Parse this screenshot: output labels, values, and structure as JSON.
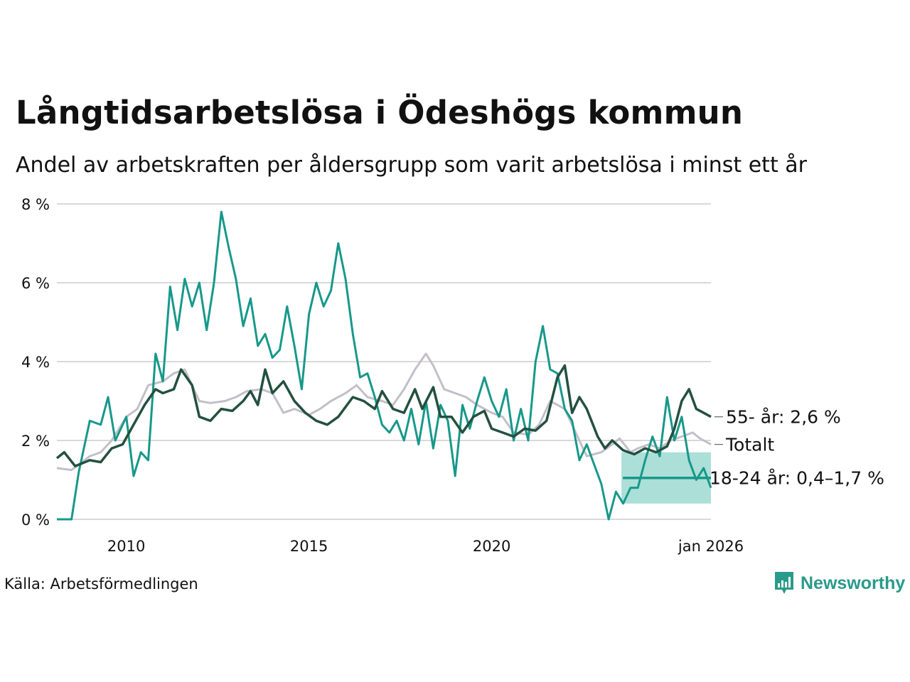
{
  "title": "Långtidsarbetslösa i Ödeshögs kommun",
  "subtitle": "Andel av arbetskraften per åldersgrupp som varit arbetslösa i minst ett år",
  "source": "Källa: Arbetsförmedlingen",
  "brand": "Newsworthy",
  "colors": {
    "totalt": "#c3bfc9",
    "age55": "#24503f",
    "age1824": "#17988a",
    "band": "#a3dbd3",
    "grid": "#d9d9d9"
  },
  "chart_data": {
    "type": "line",
    "title": "Långtidsarbetslösa i Ödeshögs kommun",
    "subtitle": "Andel av arbetskraften per åldersgrupp som varit arbetslösa i minst ett år",
    "xlabel": "",
    "ylabel": "",
    "xlim": [
      2008.1,
      2026.0
    ],
    "ylim": [
      0,
      8
    ],
    "y_ticks": [
      {
        "v": 0,
        "label": "0 %"
      },
      {
        "v": 2,
        "label": "2 %"
      },
      {
        "v": 4,
        "label": "4 %"
      },
      {
        "v": 6,
        "label": "6 %"
      },
      {
        "v": 8,
        "label": "8 %"
      }
    ],
    "x_ticks": [
      {
        "v": 2010,
        "label": "2010"
      },
      {
        "v": 2015,
        "label": "2015"
      },
      {
        "v": 2020,
        "label": "2020"
      },
      {
        "v": 2026.0,
        "label": "jan 2026"
      }
    ],
    "grid": true,
    "series": [
      {
        "name": "Totalt",
        "key": "totalt",
        "label": "Totalt",
        "points": [
          [
            2008.1,
            1.3
          ],
          [
            2008.5,
            1.25
          ],
          [
            2009.0,
            1.6
          ],
          [
            2009.3,
            1.7
          ],
          [
            2009.6,
            2.0
          ],
          [
            2010.0,
            2.6
          ],
          [
            2010.3,
            2.8
          ],
          [
            2010.6,
            3.4
          ],
          [
            2011.0,
            3.5
          ],
          [
            2011.3,
            3.7
          ],
          [
            2011.6,
            3.8
          ],
          [
            2012.0,
            3.0
          ],
          [
            2012.3,
            2.95
          ],
          [
            2012.7,
            3.0
          ],
          [
            2013.0,
            3.1
          ],
          [
            2013.3,
            3.25
          ],
          [
            2013.7,
            3.3
          ],
          [
            2014.0,
            3.2
          ],
          [
            2014.3,
            2.7
          ],
          [
            2014.6,
            2.8
          ],
          [
            2015.0,
            2.65
          ],
          [
            2015.3,
            2.8
          ],
          [
            2015.6,
            3.0
          ],
          [
            2016.0,
            3.2
          ],
          [
            2016.3,
            3.4
          ],
          [
            2016.6,
            3.1
          ],
          [
            2017.0,
            3.0
          ],
          [
            2017.3,
            2.9
          ],
          [
            2017.6,
            3.3
          ],
          [
            2017.9,
            3.8
          ],
          [
            2018.2,
            4.2
          ],
          [
            2018.4,
            3.9
          ],
          [
            2018.7,
            3.3
          ],
          [
            2019.0,
            3.2
          ],
          [
            2019.3,
            3.1
          ],
          [
            2019.6,
            2.9
          ],
          [
            2020.0,
            2.7
          ],
          [
            2020.3,
            2.6
          ],
          [
            2020.6,
            2.2
          ],
          [
            2021.0,
            2.15
          ],
          [
            2021.3,
            2.4
          ],
          [
            2021.6,
            3.0
          ],
          [
            2022.0,
            2.8
          ],
          [
            2022.3,
            2.2
          ],
          [
            2022.6,
            1.6
          ],
          [
            2023.0,
            1.7
          ],
          [
            2023.3,
            1.9
          ],
          [
            2023.5,
            2.05
          ],
          [
            2023.8,
            1.7
          ],
          [
            2024.0,
            1.8
          ],
          [
            2024.3,
            1.9
          ],
          [
            2024.6,
            1.8
          ],
          [
            2024.9,
            2.0
          ],
          [
            2025.2,
            2.1
          ],
          [
            2025.5,
            2.2
          ],
          [
            2025.7,
            2.05
          ],
          [
            2026.0,
            1.9
          ]
        ]
      },
      {
        "name": "55- år",
        "key": "age55",
        "label": "55- år: 2,6 %",
        "points": [
          [
            2008.1,
            1.55
          ],
          [
            2008.3,
            1.7
          ],
          [
            2008.6,
            1.35
          ],
          [
            2009.0,
            1.5
          ],
          [
            2009.3,
            1.45
          ],
          [
            2009.6,
            1.8
          ],
          [
            2009.9,
            1.9
          ],
          [
            2010.2,
            2.4
          ],
          [
            2010.5,
            2.9
          ],
          [
            2010.8,
            3.3
          ],
          [
            2011.0,
            3.2
          ],
          [
            2011.3,
            3.3
          ],
          [
            2011.5,
            3.8
          ],
          [
            2011.8,
            3.4
          ],
          [
            2012.0,
            2.6
          ],
          [
            2012.3,
            2.5
          ],
          [
            2012.6,
            2.8
          ],
          [
            2012.9,
            2.75
          ],
          [
            2013.2,
            3.0
          ],
          [
            2013.4,
            3.25
          ],
          [
            2013.6,
            2.9
          ],
          [
            2013.8,
            3.8
          ],
          [
            2014.0,
            3.2
          ],
          [
            2014.3,
            3.5
          ],
          [
            2014.6,
            3.0
          ],
          [
            2014.9,
            2.7
          ],
          [
            2015.2,
            2.5
          ],
          [
            2015.5,
            2.4
          ],
          [
            2015.8,
            2.6
          ],
          [
            2016.2,
            3.1
          ],
          [
            2016.5,
            3.0
          ],
          [
            2016.8,
            2.8
          ],
          [
            2017.0,
            3.25
          ],
          [
            2017.3,
            2.8
          ],
          [
            2017.6,
            2.7
          ],
          [
            2017.9,
            3.3
          ],
          [
            2018.1,
            2.8
          ],
          [
            2018.4,
            3.35
          ],
          [
            2018.6,
            2.6
          ],
          [
            2018.9,
            2.6
          ],
          [
            2019.2,
            2.2
          ],
          [
            2019.5,
            2.6
          ],
          [
            2019.8,
            2.75
          ],
          [
            2020.0,
            2.3
          ],
          [
            2020.3,
            2.2
          ],
          [
            2020.6,
            2.1
          ],
          [
            2020.9,
            2.3
          ],
          [
            2021.2,
            2.25
          ],
          [
            2021.5,
            2.5
          ],
          [
            2021.8,
            3.6
          ],
          [
            2022.0,
            3.9
          ],
          [
            2022.2,
            2.7
          ],
          [
            2022.4,
            3.1
          ],
          [
            2022.6,
            2.8
          ],
          [
            2022.9,
            2.1
          ],
          [
            2023.1,
            1.8
          ],
          [
            2023.3,
            2.0
          ],
          [
            2023.6,
            1.75
          ],
          [
            2023.9,
            1.65
          ],
          [
            2024.2,
            1.8
          ],
          [
            2024.5,
            1.7
          ],
          [
            2024.8,
            1.85
          ],
          [
            2025.0,
            2.3
          ],
          [
            2025.2,
            3.0
          ],
          [
            2025.4,
            3.3
          ],
          [
            2025.6,
            2.8
          ],
          [
            2025.8,
            2.7
          ],
          [
            2026.0,
            2.6
          ]
        ]
      },
      {
        "name": "18-24 år",
        "key": "age1824",
        "label": "18-24 år: 0,4–1,7 %",
        "points": [
          [
            2008.1,
            0.0
          ],
          [
            2008.5,
            0.0
          ],
          [
            2008.7,
            1.2
          ],
          [
            2009.0,
            2.5
          ],
          [
            2009.3,
            2.4
          ],
          [
            2009.5,
            3.1
          ],
          [
            2009.7,
            2.0
          ],
          [
            2010.0,
            2.6
          ],
          [
            2010.2,
            1.1
          ],
          [
            2010.4,
            1.7
          ],
          [
            2010.6,
            1.5
          ],
          [
            2010.8,
            4.2
          ],
          [
            2011.0,
            3.5
          ],
          [
            2011.2,
            5.9
          ],
          [
            2011.4,
            4.8
          ],
          [
            2011.6,
            6.1
          ],
          [
            2011.8,
            5.4
          ],
          [
            2012.0,
            6.0
          ],
          [
            2012.2,
            4.8
          ],
          [
            2012.4,
            6.0
          ],
          [
            2012.6,
            7.8
          ],
          [
            2012.8,
            6.9
          ],
          [
            2013.0,
            6.1
          ],
          [
            2013.2,
            4.9
          ],
          [
            2013.4,
            5.6
          ],
          [
            2013.6,
            4.4
          ],
          [
            2013.8,
            4.7
          ],
          [
            2014.0,
            4.1
          ],
          [
            2014.2,
            4.3
          ],
          [
            2014.4,
            5.4
          ],
          [
            2014.6,
            4.4
          ],
          [
            2014.8,
            3.3
          ],
          [
            2015.0,
            5.2
          ],
          [
            2015.2,
            6.0
          ],
          [
            2015.4,
            5.4
          ],
          [
            2015.6,
            5.8
          ],
          [
            2015.8,
            7.0
          ],
          [
            2016.0,
            6.1
          ],
          [
            2016.2,
            4.7
          ],
          [
            2016.4,
            3.6
          ],
          [
            2016.6,
            3.7
          ],
          [
            2016.8,
            3.1
          ],
          [
            2017.0,
            2.4
          ],
          [
            2017.2,
            2.2
          ],
          [
            2017.4,
            2.5
          ],
          [
            2017.6,
            2.0
          ],
          [
            2017.8,
            2.8
          ],
          [
            2018.0,
            1.9
          ],
          [
            2018.2,
            3.0
          ],
          [
            2018.4,
            1.8
          ],
          [
            2018.6,
            2.9
          ],
          [
            2018.8,
            2.5
          ],
          [
            2019.0,
            1.1
          ],
          [
            2019.2,
            2.9
          ],
          [
            2019.4,
            2.3
          ],
          [
            2019.6,
            3.0
          ],
          [
            2019.8,
            3.6
          ],
          [
            2020.0,
            3.0
          ],
          [
            2020.2,
            2.6
          ],
          [
            2020.4,
            3.3
          ],
          [
            2020.6,
            2.0
          ],
          [
            2020.8,
            2.8
          ],
          [
            2021.0,
            2.0
          ],
          [
            2021.2,
            4.0
          ],
          [
            2021.4,
            4.9
          ],
          [
            2021.6,
            3.8
          ],
          [
            2021.8,
            3.7
          ],
          [
            2022.0,
            2.8
          ],
          [
            2022.2,
            2.5
          ],
          [
            2022.4,
            1.5
          ],
          [
            2022.6,
            1.9
          ],
          [
            2022.8,
            1.4
          ],
          [
            2023.0,
            0.9
          ],
          [
            2023.2,
            0.0
          ],
          [
            2023.4,
            0.7
          ],
          [
            2023.6,
            0.4
          ],
          [
            2023.8,
            0.8
          ],
          [
            2024.0,
            0.8
          ],
          [
            2024.2,
            1.5
          ],
          [
            2024.4,
            2.1
          ],
          [
            2024.6,
            1.6
          ],
          [
            2024.8,
            3.1
          ],
          [
            2025.0,
            2.0
          ],
          [
            2025.2,
            2.6
          ],
          [
            2025.4,
            1.5
          ],
          [
            2025.6,
            1.0
          ],
          [
            2025.8,
            1.3
          ],
          [
            2026.0,
            0.8
          ]
        ]
      }
    ],
    "band": {
      "name": "18-24 år osäkerhetsintervall",
      "x_start": 2023.55,
      "x_end": 2026.0,
      "low": 0.4,
      "high": 1.7,
      "mid": 1.05
    }
  }
}
